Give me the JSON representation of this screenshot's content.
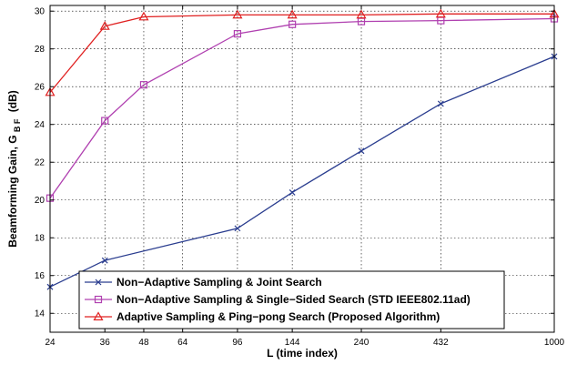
{
  "chart_data": {
    "type": "line",
    "title": "",
    "xlabel": "L (time index)",
    "ylabel_main": "Beamforming Gain, G",
    "ylabel_sub": "B F",
    "ylabel_unit": "(dB)",
    "x_scale": "log",
    "xlim": [
      24,
      1000
    ],
    "ylim": [
      13,
      30.3
    ],
    "grid": true,
    "legend_position": "bottom-right",
    "x_ticks": [
      24,
      36,
      48,
      64,
      96,
      144,
      240,
      432,
      1000
    ],
    "y_ticks": [
      14,
      16,
      18,
      20,
      22,
      24,
      26,
      28,
      30
    ],
    "series": [
      {
        "name": "Non−Adaptive Sampling & Joint Search",
        "color": "#2a3d8f",
        "marker": "x",
        "x": [
          24,
          36,
          96,
          144,
          240,
          432,
          1000
        ],
        "y": [
          15.4,
          16.8,
          18.5,
          20.4,
          22.6,
          25.1,
          27.6
        ]
      },
      {
        "name": "Non−Adaptive Sampling & Single−Sided Search (STD IEEE802.11ad)",
        "color": "#b040b0",
        "marker": "square",
        "x": [
          24,
          36,
          48,
          96,
          144,
          240,
          432,
          1000
        ],
        "y": [
          20.1,
          24.2,
          26.1,
          28.8,
          29.3,
          29.45,
          29.5,
          29.6
        ]
      },
      {
        "name": "Adaptive Sampling & Ping−pong Search (Proposed Algorithm)",
        "color": "#e02020",
        "marker": "triangle",
        "x": [
          24,
          36,
          48,
          96,
          144,
          240,
          432,
          1000
        ],
        "y": [
          25.7,
          29.2,
          29.7,
          29.8,
          29.8,
          29.8,
          29.85,
          29.85
        ]
      }
    ]
  }
}
